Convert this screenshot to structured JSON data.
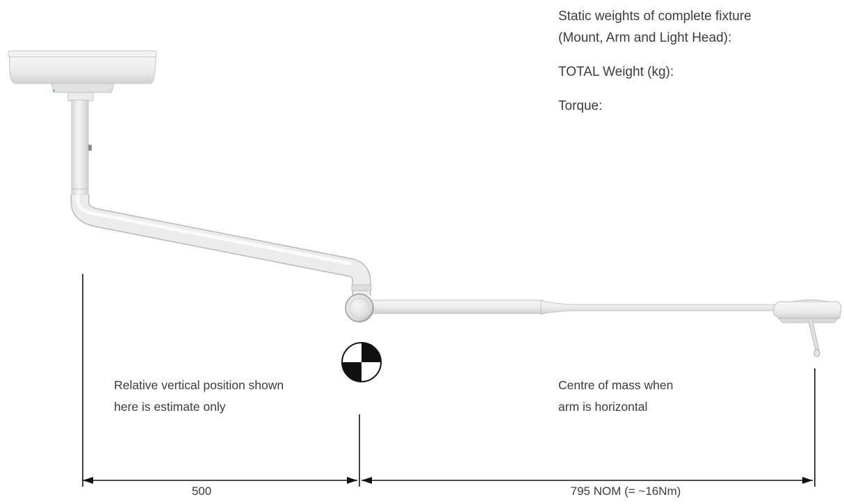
{
  "specs": {
    "heading_line1": "Static weights of complete fixture",
    "heading_line2": "(Mount, Arm and Light Head):",
    "total_weight_label": "TOTAL Weight (kg):",
    "torque_label": "Torque:"
  },
  "notes": {
    "left_line1": "Relative vertical position shown",
    "left_line2": "here is estimate only",
    "right_line1": "Centre of mass when",
    "right_line2": "arm is horizontal"
  },
  "dimensions": {
    "left": "500",
    "right": "795 NOM (= ~16Nm)"
  },
  "icons": {
    "center_of_mass": "centre-of-mass-icon"
  },
  "colors": {
    "fixture": "#e9e9e9",
    "fixture_outline": "#bdbdbd",
    "lines": "#111111",
    "text": "#3c3c3c"
  }
}
